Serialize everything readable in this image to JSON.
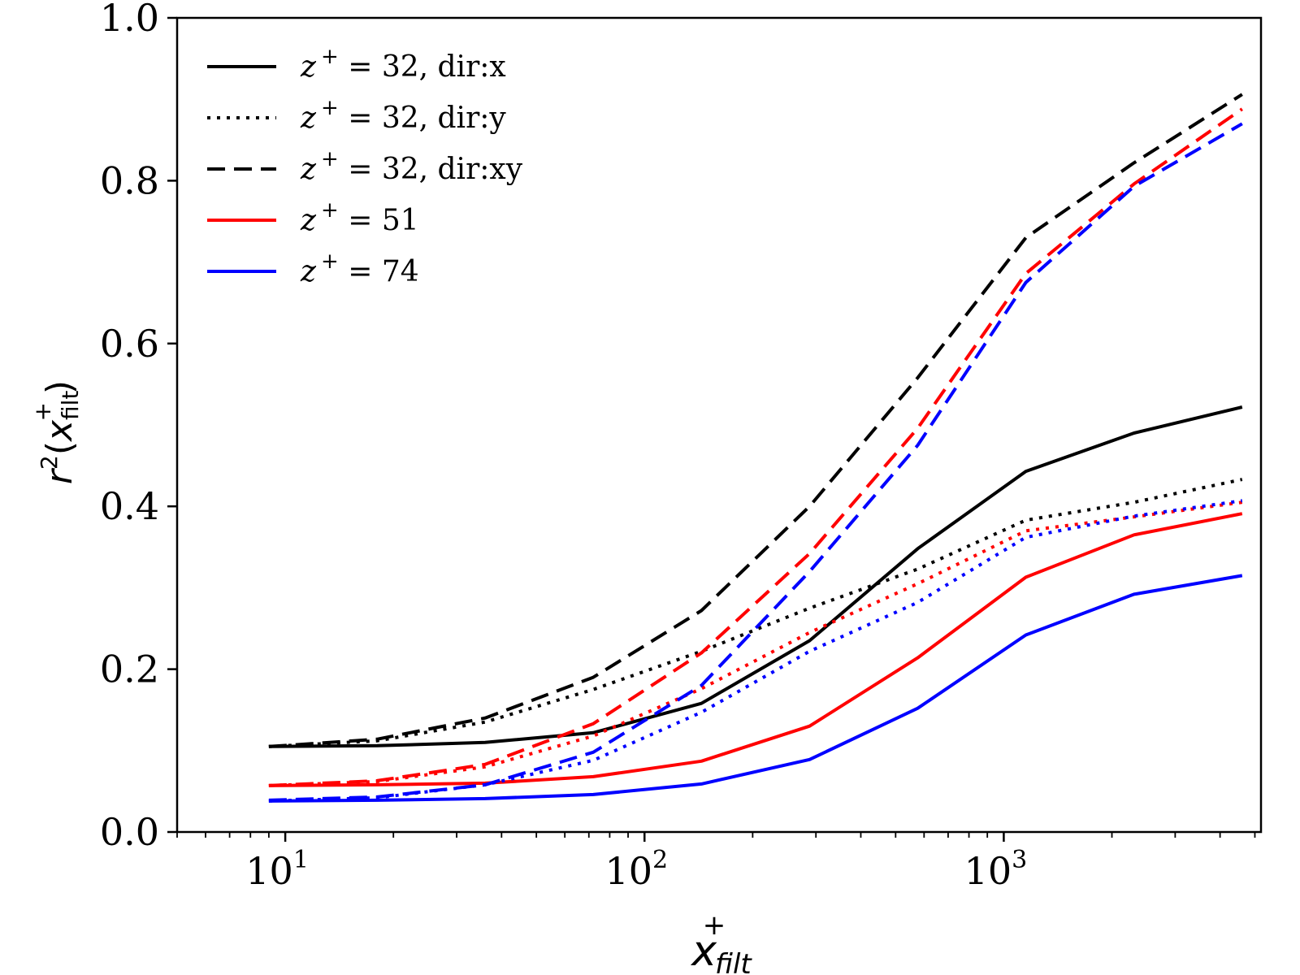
{
  "chart_data": {
    "type": "line",
    "xscale": "log",
    "xlim": [
      5,
      5200
    ],
    "ylim": [
      0,
      1.0
    ],
    "xticks": [
      {
        "value": 10,
        "base": "10",
        "exp": "1"
      },
      {
        "value": 100,
        "base": "10",
        "exp": "2"
      },
      {
        "value": 1000,
        "base": "10",
        "exp": "3"
      }
    ],
    "yticks": [
      "0.0",
      "0.2",
      "0.4",
      "0.6",
      "0.8",
      "1.0"
    ],
    "xlabel": {
      "base": "x",
      "sup": "+",
      "sub": "filt"
    },
    "ylabel": {
      "base": "r",
      "sup": "2",
      "open": "(",
      "var": "x",
      "var_sup": "+",
      "var_sub": "filt",
      "close": ")"
    },
    "legend_position": "upper-left",
    "x": [
      9,
      18,
      36,
      72,
      144,
      288,
      576,
      1152,
      2304,
      4608
    ],
    "series": [
      {
        "name_base": "z",
        "name_sup": "+",
        "name_rest": " = 32, dir:x",
        "color": "#000000",
        "style": "solid",
        "legend": true,
        "values": [
          0.105,
          0.106,
          0.11,
          0.122,
          0.158,
          0.235,
          0.348,
          0.443,
          0.49,
          0.522
        ]
      },
      {
        "name_base": "z",
        "name_sup": "+",
        "name_rest": " = 32, dir:y",
        "color": "#000000",
        "style": "dotted",
        "legend": true,
        "values": [
          0.105,
          0.112,
          0.135,
          0.175,
          0.222,
          0.275,
          0.323,
          0.383,
          0.405,
          0.433
        ]
      },
      {
        "name_base": "z",
        "name_sup": "+",
        "name_rest": " = 32, dir:xy",
        "color": "#000000",
        "style": "dashed",
        "legend": true,
        "values": [
          0.105,
          0.114,
          0.14,
          0.19,
          0.272,
          0.4,
          0.558,
          0.73,
          0.822,
          0.906
        ]
      },
      {
        "name_base": "z",
        "name_sup": "+",
        "name_rest": " = 51",
        "color": "#ff0000",
        "style": "solid",
        "legend": true,
        "values": [
          0.057,
          0.058,
          0.06,
          0.068,
          0.087,
          0.13,
          0.214,
          0.313,
          0.365,
          0.391
        ]
      },
      {
        "name_base": "",
        "name_sup": "",
        "name_rest": "",
        "color": "#ff0000",
        "style": "dotted",
        "legend": false,
        "values": [
          0.057,
          0.062,
          0.08,
          0.118,
          0.176,
          0.245,
          0.305,
          0.37,
          0.387,
          0.405
        ]
      },
      {
        "name_base": "",
        "name_sup": "",
        "name_rest": "",
        "color": "#ff0000",
        "style": "dashed",
        "legend": false,
        "values": [
          0.057,
          0.063,
          0.083,
          0.133,
          0.22,
          0.342,
          0.496,
          0.686,
          0.796,
          0.888
        ]
      },
      {
        "name_base": "z",
        "name_sup": "+",
        "name_rest": " = 74",
        "color": "#0000ff",
        "style": "solid",
        "legend": true,
        "values": [
          0.038,
          0.039,
          0.041,
          0.046,
          0.059,
          0.089,
          0.152,
          0.242,
          0.292,
          0.315
        ]
      },
      {
        "name_base": "",
        "name_sup": "",
        "name_rest": "",
        "color": "#0000ff",
        "style": "dotted",
        "legend": false,
        "values": [
          0.038,
          0.042,
          0.058,
          0.088,
          0.147,
          0.222,
          0.282,
          0.362,
          0.388,
          0.407
        ]
      },
      {
        "name_base": "",
        "name_sup": "",
        "name_rest": "",
        "color": "#0000ff",
        "style": "dashed",
        "legend": false,
        "values": [
          0.039,
          0.043,
          0.058,
          0.098,
          0.18,
          0.32,
          0.475,
          0.675,
          0.793,
          0.87
        ]
      }
    ]
  }
}
